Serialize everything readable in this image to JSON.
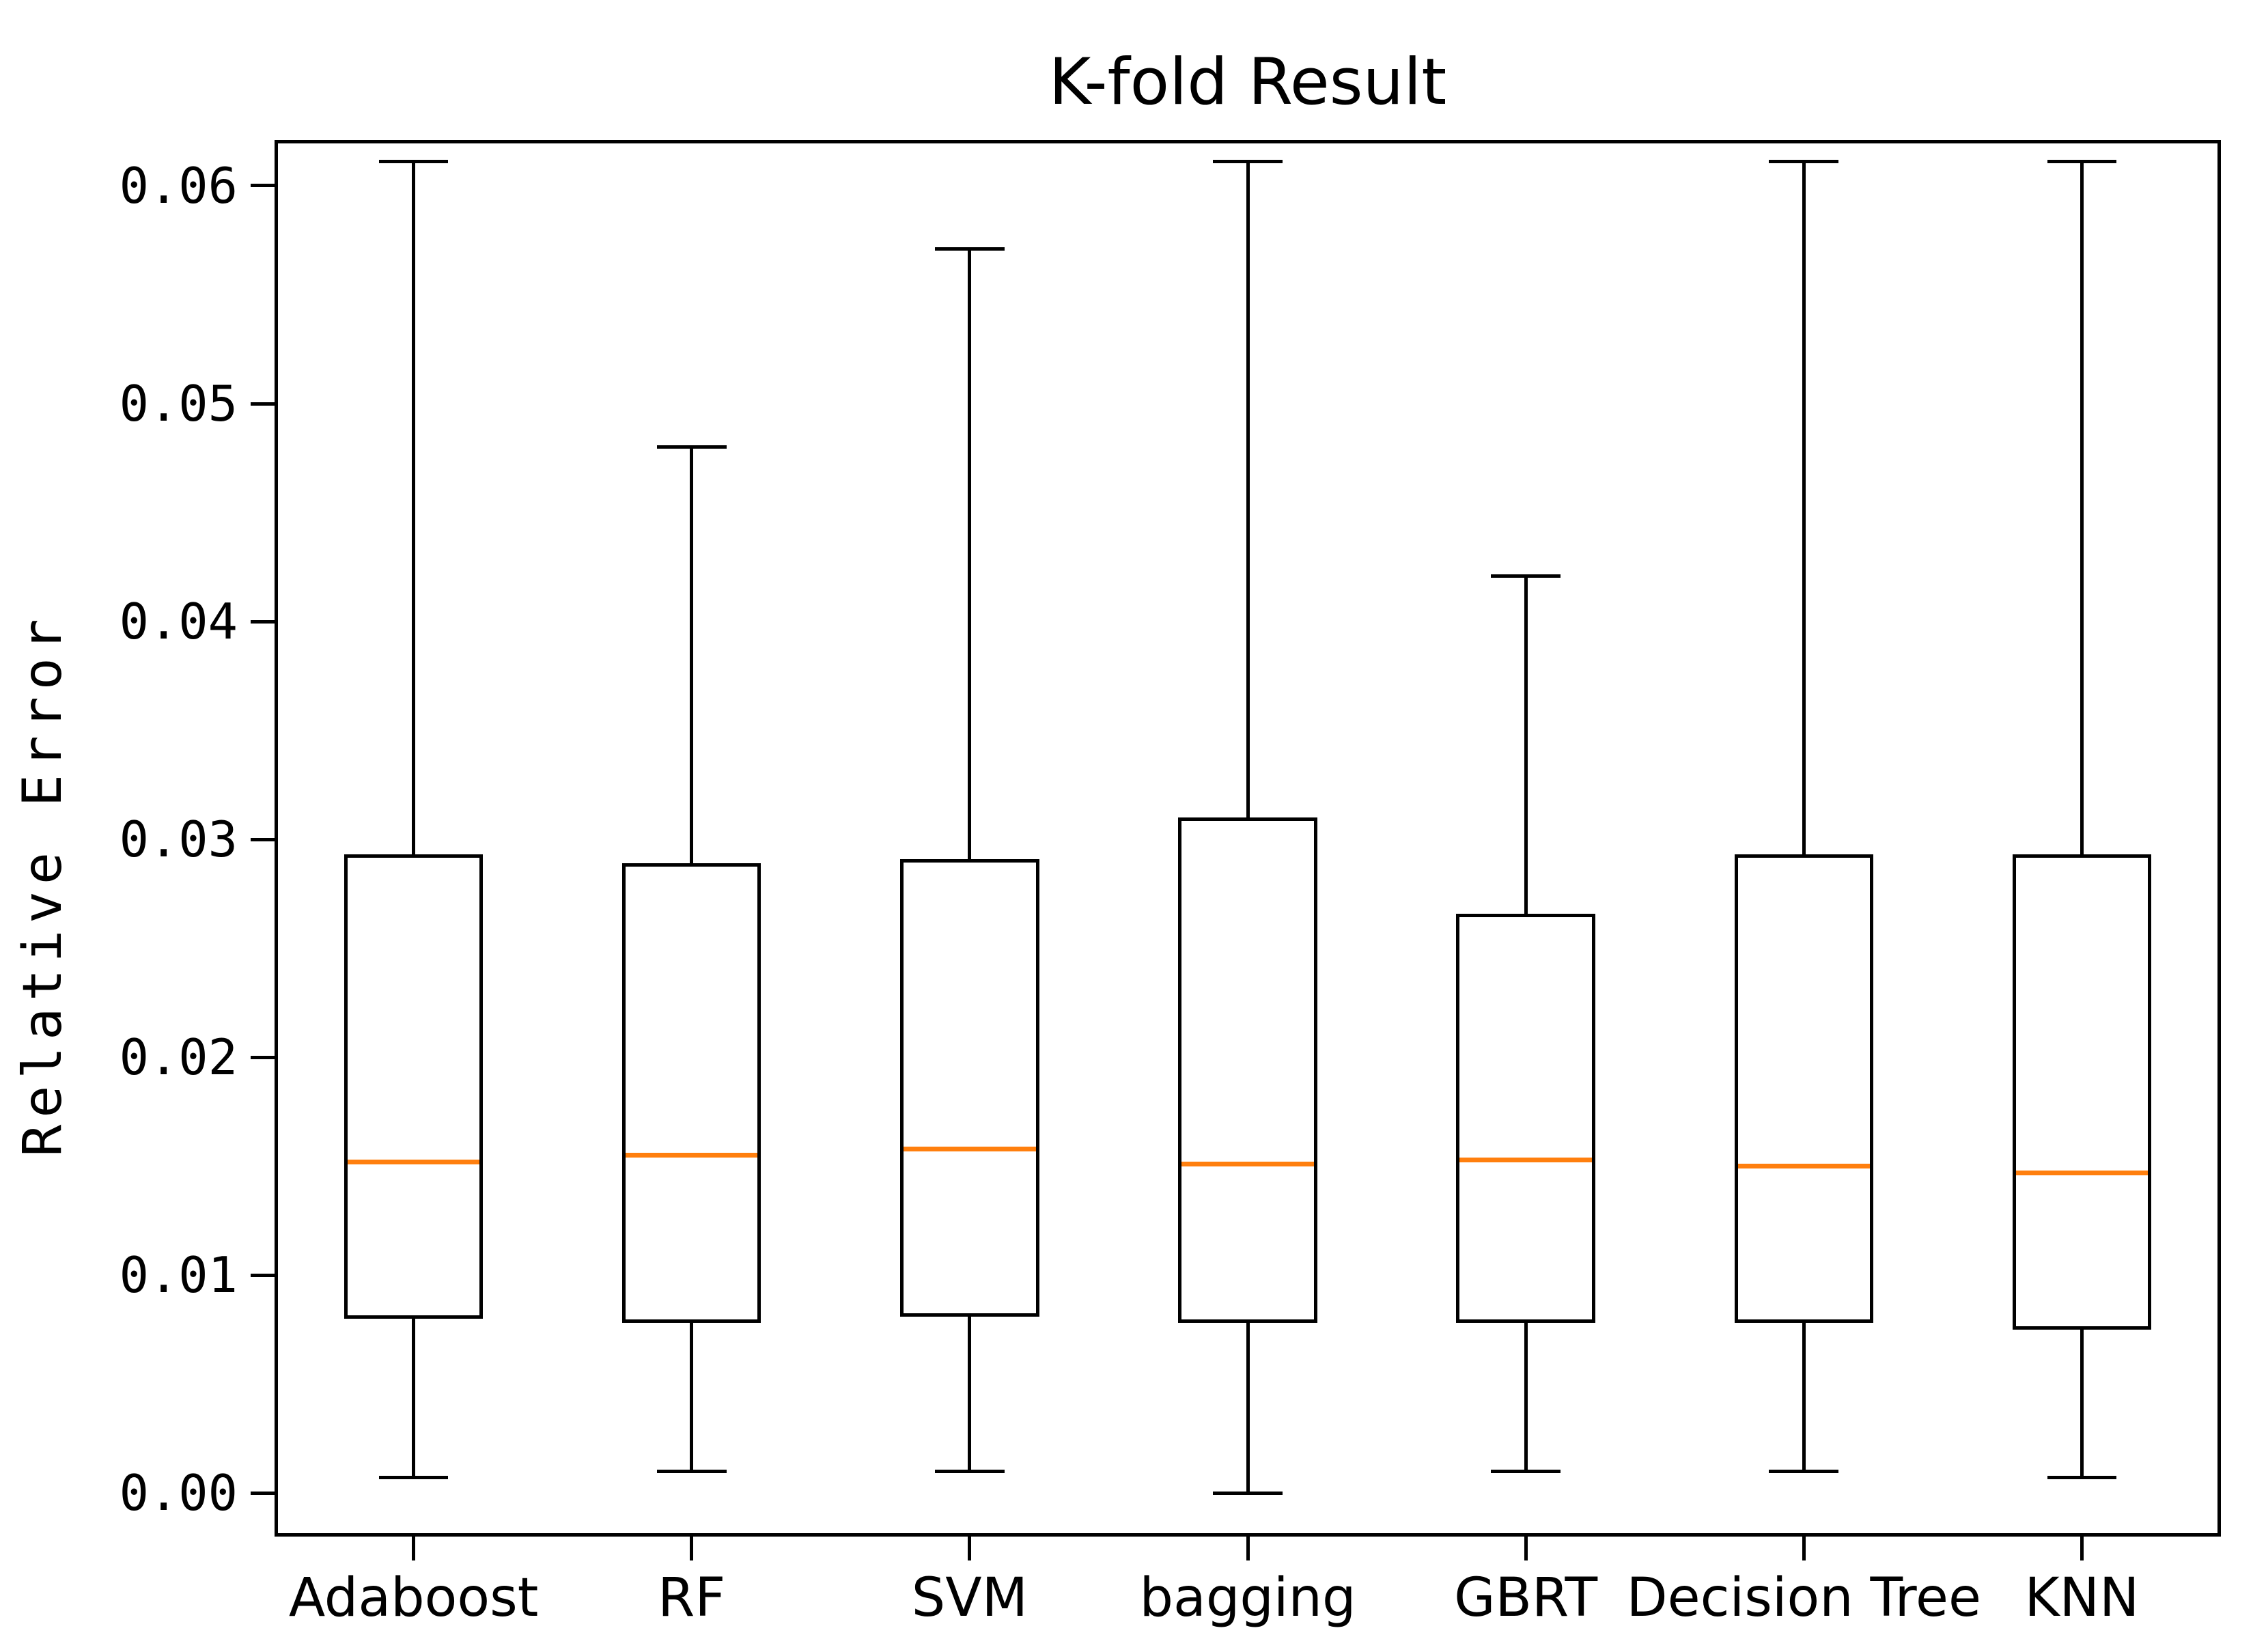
{
  "figure": {
    "title": "K-fold Result",
    "ylabel": "Relative Error"
  },
  "chart_data": {
    "type": "box",
    "title": "K-fold Result",
    "xlabel": "",
    "ylabel": "Relative Error",
    "categories": [
      "Adaboost",
      "RF",
      "SVM",
      "bagging",
      "GBRT",
      "Decision Tree",
      "KNN"
    ],
    "series": [
      {
        "name": "Adaboost",
        "whislo": 0.0007,
        "q1": 0.008,
        "med": 0.0152,
        "q3": 0.0293,
        "whishi": 0.0611
      },
      {
        "name": "RF",
        "whislo": 0.001,
        "q1": 0.0078,
        "med": 0.0155,
        "q3": 0.0289,
        "whishi": 0.048
      },
      {
        "name": "SVM",
        "whislo": 0.001,
        "q1": 0.0081,
        "med": 0.0158,
        "q3": 0.0291,
        "whishi": 0.0571
      },
      {
        "name": "bagging",
        "whislo": 0.0,
        "q1": 0.0078,
        "med": 0.0151,
        "q3": 0.031,
        "whishi": 0.0611
      },
      {
        "name": "GBRT",
        "whislo": 0.001,
        "q1": 0.0078,
        "med": 0.0153,
        "q3": 0.0266,
        "whishi": 0.0421
      },
      {
        "name": "Decision Tree",
        "whislo": 0.001,
        "q1": 0.0078,
        "med": 0.015,
        "q3": 0.0293,
        "whishi": 0.0611
      },
      {
        "name": "KNN",
        "whislo": 0.0007,
        "q1": 0.0075,
        "med": 0.0147,
        "q3": 0.0293,
        "whishi": 0.0611
      }
    ],
    "yticks": [
      "0.06",
      "0.05",
      "0.04",
      "0.03",
      "0.02",
      "0.01",
      "0.00"
    ],
    "ytick_values": [
      0.06,
      0.05,
      0.04,
      0.03,
      0.02,
      0.01,
      0.0
    ],
    "ylim": [
      -0.002,
      0.0621
    ],
    "grid": false,
    "legend": "none",
    "colors": {
      "box": "#000000",
      "median": "#ff7f0e",
      "background": "#ffffff",
      "text": "#000000"
    }
  }
}
